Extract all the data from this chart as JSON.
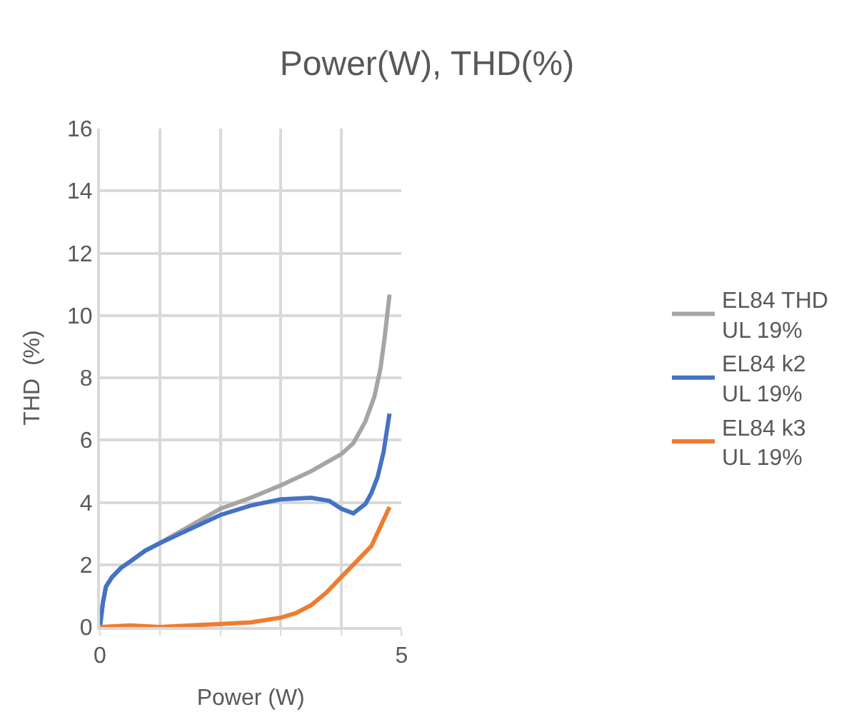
{
  "chart_data": {
    "type": "line",
    "title": "Power(W), THD(%)",
    "xlabel": "Power (W)",
    "ylabel": "THD  (%)",
    "xlim": [
      0,
      5
    ],
    "xticks": [
      0,
      {
        "value": 1,
        "label": null
      },
      {
        "value": 2,
        "label": null
      },
      {
        "value": 3,
        "label": null
      },
      {
        "value": 4,
        "label": null
      },
      5
    ],
    "ylim": [
      0,
      16
    ],
    "yticks": [
      0,
      2,
      4,
      6,
      8,
      10,
      12,
      14,
      16
    ],
    "grid": true,
    "legend": "right",
    "marker": "none",
    "line_style": "solid",
    "series": [
      {
        "name": "EL84 THD UL 19%",
        "color": "#a5a5a5",
        "x": [
          0,
          0.05,
          0.1,
          0.2,
          0.35,
          0.5,
          0.75,
          1,
          1.5,
          2,
          2.5,
          3,
          3.5,
          4,
          4.2,
          4.4,
          4.55,
          4.65,
          4.72,
          4.8
        ],
        "values": [
          0,
          0.8,
          1.3,
          1.6,
          1.9,
          2.1,
          2.45,
          2.7,
          3.25,
          3.8,
          4.15,
          4.55,
          5,
          5.55,
          5.9,
          6.6,
          7.4,
          8.3,
          9.3,
          10.67
        ]
      },
      {
        "name": "EL84 k2 UL 19%",
        "color": "#4472c4",
        "x": [
          0,
          0.05,
          0.1,
          0.2,
          0.35,
          0.5,
          0.75,
          1,
          1.5,
          2,
          2.5,
          3,
          3.5,
          3.8,
          4,
          4.2,
          4.4,
          4.5,
          4.6,
          4.7,
          4.8
        ],
        "values": [
          0,
          0.8,
          1.3,
          1.6,
          1.9,
          2.1,
          2.45,
          2.7,
          3.15,
          3.6,
          3.9,
          4.1,
          4.15,
          4.05,
          3.8,
          3.65,
          3.95,
          4.3,
          4.8,
          5.6,
          6.85
        ]
      },
      {
        "name": "EL84 k3 UL 19%",
        "color": "#ed7d31",
        "x": [
          0,
          0.5,
          1,
          1.5,
          2,
          2.5,
          3,
          3.25,
          3.5,
          3.75,
          4,
          4.25,
          4.5,
          4.8
        ],
        "values": [
          0,
          0.05,
          0,
          0.05,
          0.1,
          0.15,
          0.3,
          0.45,
          0.7,
          1.1,
          1.6,
          2.1,
          2.6,
          3.85
        ]
      }
    ]
  }
}
